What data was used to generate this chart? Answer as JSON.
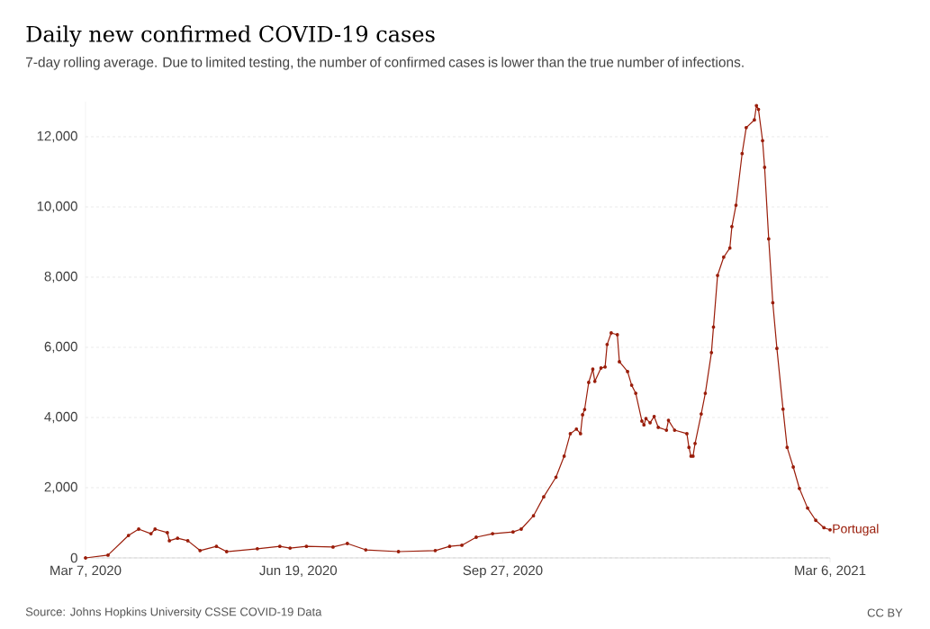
{
  "chart_data": {
    "type": "line",
    "title": "Daily new confirmed COVID-19 cases",
    "subtitle": "7-day rolling average. Due to limited testing, the number of confirmed cases is lower than the true number of infections.",
    "annotations": [
      "Source: Johns Hopkins University CSSE COVID-19 Data",
      "CC BY"
    ],
    "x": [
      "2020-03-07",
      "2020-03-18",
      "2020-03-28",
      "2020-04-02",
      "2020-04-08",
      "2020-04-10",
      "2020-04-16",
      "2020-04-17",
      "2020-04-21",
      "2020-04-26",
      "2020-05-02",
      "2020-05-10",
      "2020-05-15",
      "2020-05-30",
      "2020-06-10",
      "2020-06-15",
      "2020-06-23",
      "2020-07-06",
      "2020-07-13",
      "2020-07-22",
      "2020-08-07",
      "2020-08-25",
      "2020-09-01",
      "2020-09-07",
      "2020-09-14",
      "2020-09-22",
      "2020-10-02",
      "2020-10-06",
      "2020-10-12",
      "2020-10-17",
      "2020-10-23",
      "2020-10-27",
      "2020-10-30",
      "2020-11-02",
      "2020-11-04",
      "2020-11-05",
      "2020-11-06",
      "2020-11-08",
      "2020-11-10",
      "2020-11-11",
      "2020-11-14",
      "2020-11-16",
      "2020-11-17",
      "2020-11-19",
      "2020-11-22",
      "2020-11-23",
      "2020-11-27",
      "2020-11-29",
      "2020-12-01",
      "2020-12-04",
      "2020-12-05",
      "2020-12-06",
      "2020-12-08",
      "2020-12-10",
      "2020-12-12",
      "2020-12-16",
      "2020-12-17",
      "2020-12-20",
      "2020-12-26",
      "2020-12-27",
      "2020-12-28",
      "2020-12-29",
      "2020-12-30",
      "2021-01-02",
      "2021-01-04",
      "2021-01-07",
      "2021-01-08",
      "2021-01-10",
      "2021-01-13",
      "2021-01-16",
      "2021-01-17",
      "2021-01-19",
      "2021-01-22",
      "2021-01-24",
      "2021-01-28",
      "2021-01-29",
      "2021-01-30",
      "2021-02-01",
      "2021-02-02",
      "2021-02-04",
      "2021-02-06",
      "2021-02-08",
      "2021-02-11",
      "2021-02-13",
      "2021-02-16",
      "2021-02-19",
      "2021-02-23",
      "2021-02-27",
      "2021-03-03",
      "2021-03-06"
    ],
    "series": [
      {
        "name": "Portugal",
        "color": "#9a1d0a",
        "values": [
          0,
          80,
          640,
          820,
          690,
          820,
          720,
          490,
          560,
          490,
          210,
          330,
          180,
          260,
          330,
          280,
          330,
          310,
          410,
          230,
          180,
          210,
          330,
          360,
          590,
          690,
          740,
          820,
          1200,
          1740,
          2300,
          2900,
          3540,
          3670,
          3540,
          4080,
          4230,
          5000,
          5380,
          5030,
          5410,
          5440,
          6080,
          6410,
          6360,
          5590,
          5310,
          4920,
          4690,
          3900,
          3790,
          3970,
          3850,
          4030,
          3720,
          3640,
          3920,
          3640,
          3540,
          3150,
          2900,
          2900,
          3260,
          4100,
          4690,
          5850,
          6580,
          8050,
          8570,
          8830,
          9440,
          10050,
          11520,
          12260,
          12480,
          12890,
          12780,
          11890,
          11130,
          9090,
          7270,
          5970,
          4240,
          3150,
          2590,
          1980,
          1420,
          1070,
          860,
          800
        ]
      }
    ],
    "xlim": [
      "2020-03-07",
      "2021-03-06"
    ],
    "xticks": [
      {
        "value": "2020-03-07",
        "label": "Mar 7, 2020"
      },
      {
        "value": "2020-06-19",
        "label": "Jun 19, 2020"
      },
      {
        "value": "2020-09-27",
        "label": "Sep 27, 2020"
      },
      {
        "value": "2021-03-06",
        "label": "Mar 6, 2021"
      }
    ],
    "yticks": [
      {
        "value": 0,
        "label": "0"
      },
      {
        "value": 2000,
        "label": "2,000"
      },
      {
        "value": 4000,
        "label": "4,000"
      },
      {
        "value": 6000,
        "label": "6,000"
      },
      {
        "value": 8000,
        "label": "8,000"
      },
      {
        "value": 10000,
        "label": "10,000"
      },
      {
        "value": 12000,
        "label": "12,000"
      }
    ],
    "ylim": [
      0,
      13000
    ],
    "grid": "y",
    "marker": "circle",
    "line_style": "solid",
    "legend": false
  }
}
